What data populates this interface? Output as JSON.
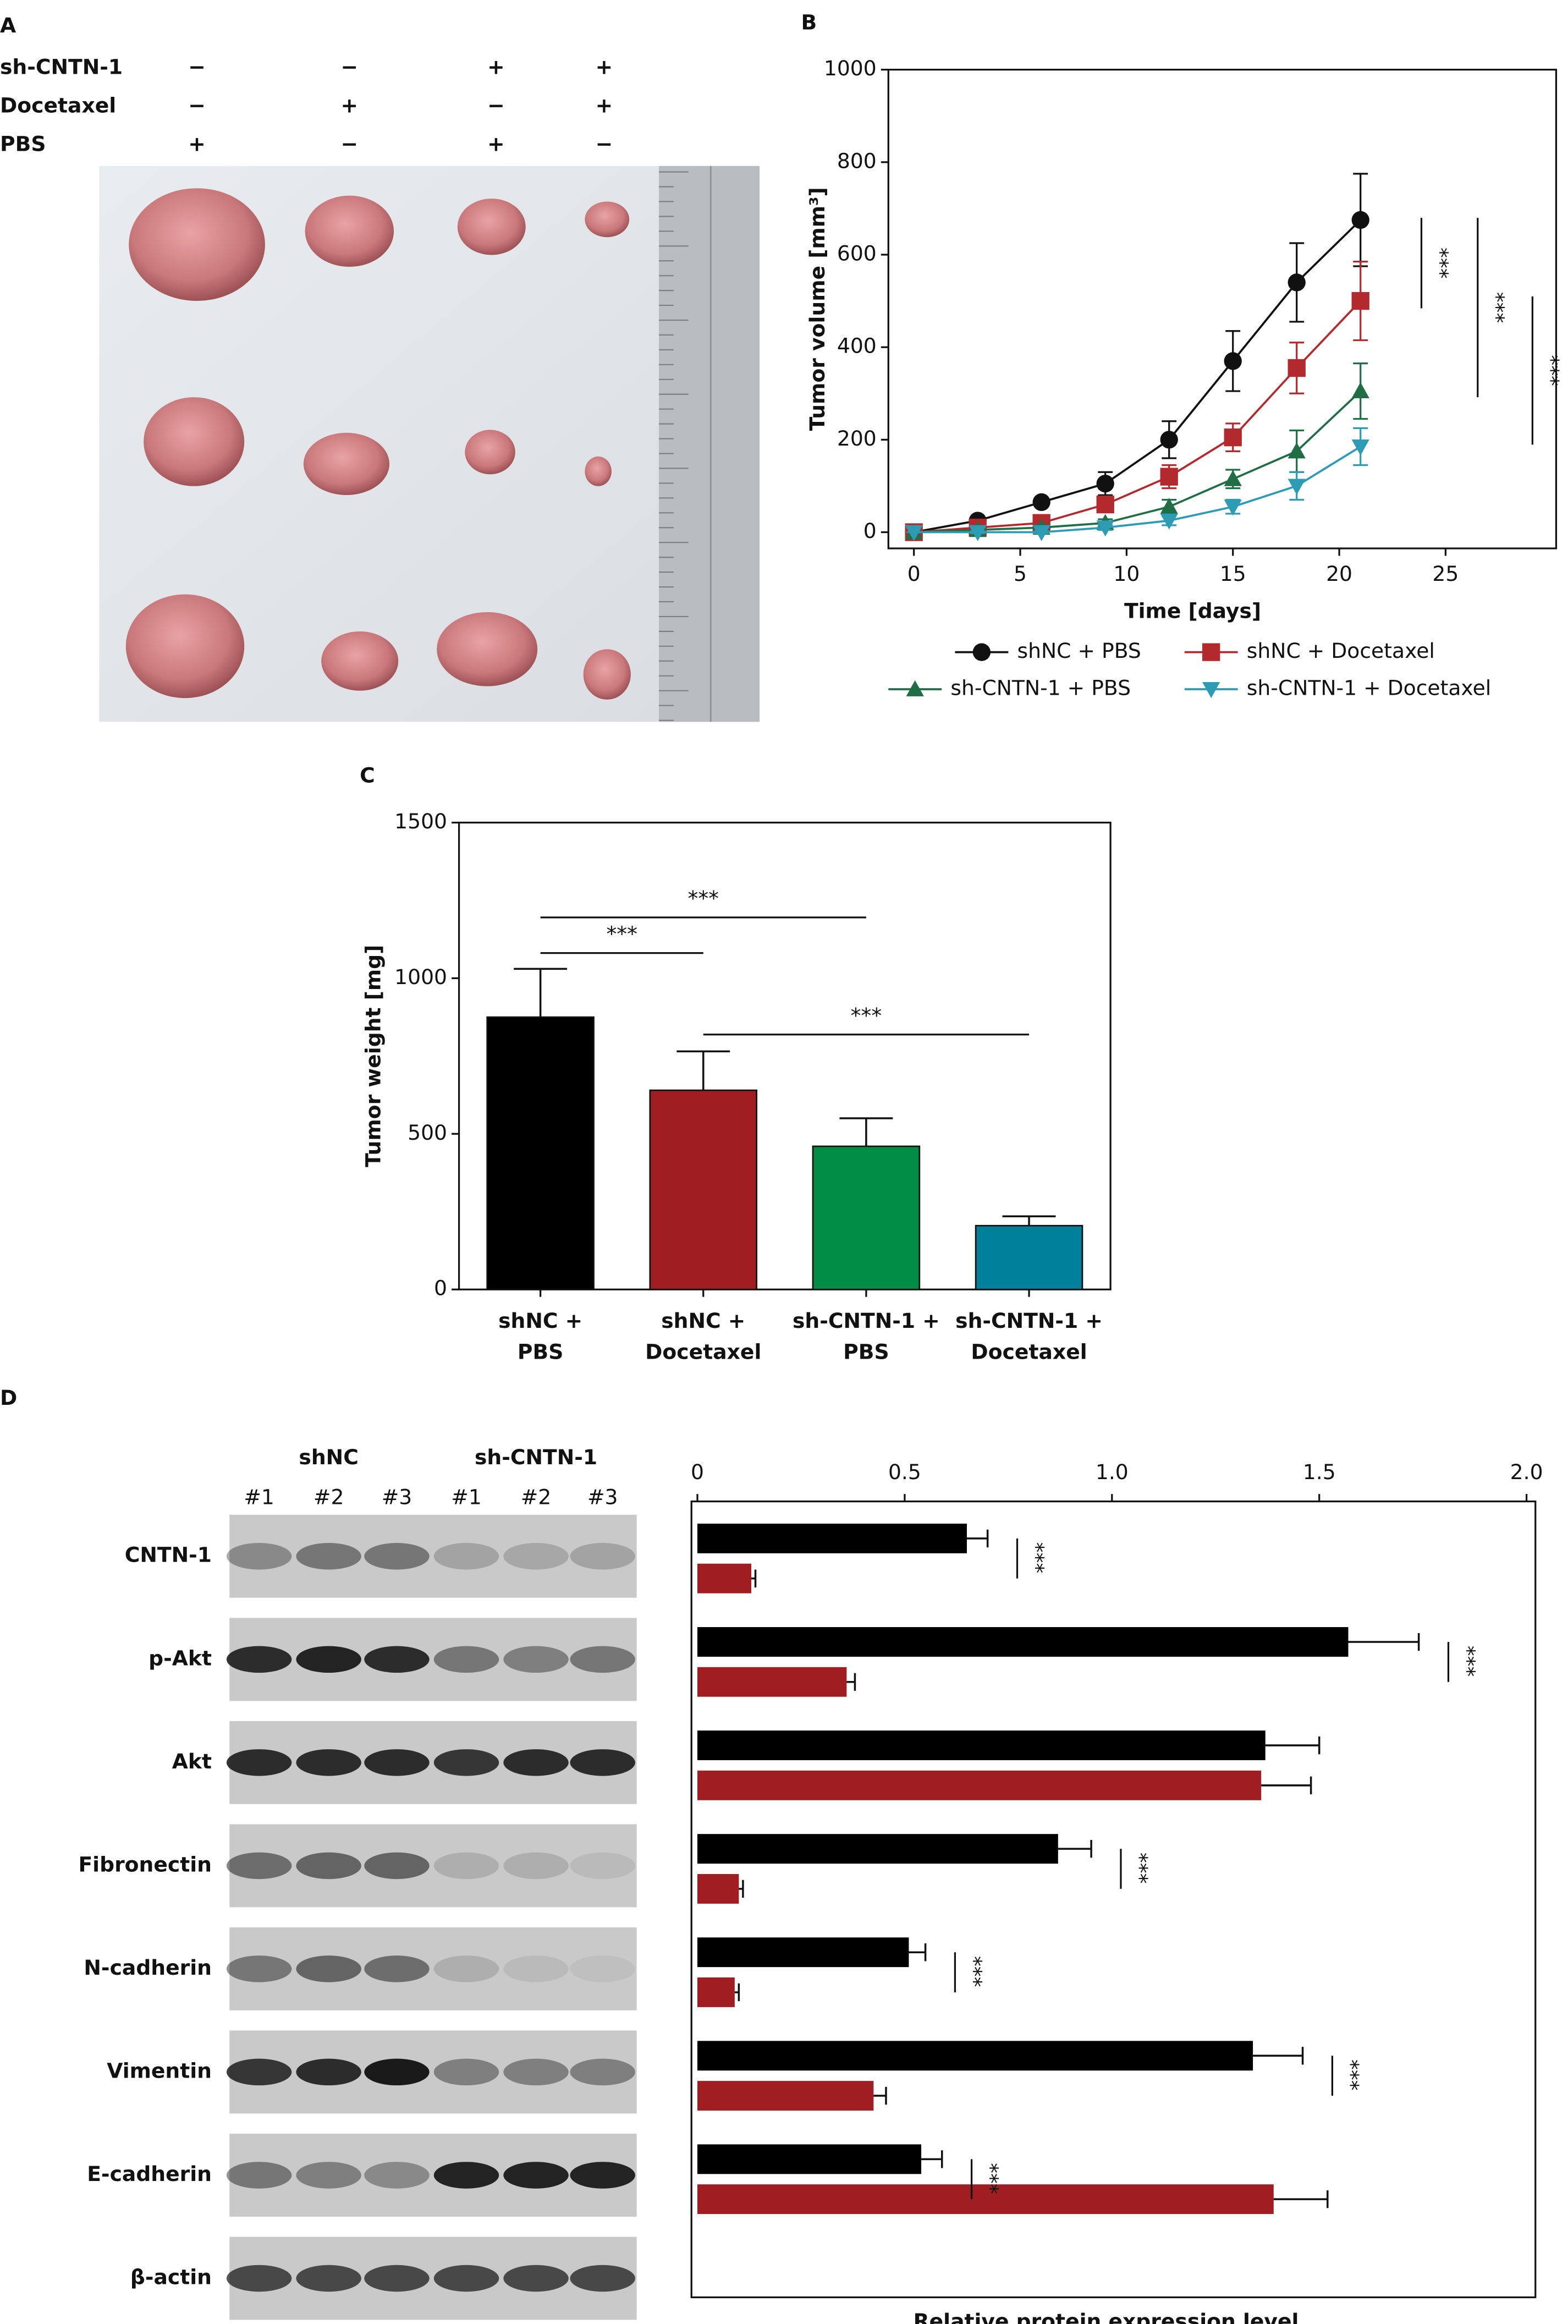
{
  "panels": [
    "A",
    "B",
    "C",
    "D"
  ],
  "panel_a": {
    "rows": [
      {
        "label": "sh-CNTN-1",
        "signs": [
          "−",
          "−",
          "+",
          "+"
        ]
      },
      {
        "label": "Docetaxel",
        "signs": [
          "−",
          "+",
          "−",
          "+"
        ]
      },
      {
        "label": "PBS",
        "signs": [
          "+",
          "−",
          "+",
          "−"
        ]
      }
    ]
  },
  "blot": {
    "groups": [
      "shNC",
      "sh-CNTN-1"
    ],
    "lanes": [
      "#1",
      "#2",
      "#3",
      "#1",
      "#2",
      "#3"
    ],
    "reference_row": "β-actin"
  },
  "chart_data": [
    {
      "type": "line",
      "xlabel": "Time [days]",
      "ylabel": "Tumor volume [mm³]",
      "x": [
        0,
        3,
        6,
        9,
        12,
        15,
        18,
        21
      ],
      "xlim": [
        -1.2,
        30.2
      ],
      "xticks": [
        0,
        5,
        10,
        15,
        20,
        25
      ],
      "ylim": [
        -35,
        1000
      ],
      "yticks": [
        0,
        200,
        400,
        600,
        800,
        1000
      ],
      "legend": "bottom",
      "series": [
        {
          "name": "shNC + PBS",
          "color": "#111111",
          "marker": "circle",
          "values": [
            0,
            25,
            65,
            105,
            200,
            370,
            540,
            675
          ],
          "errors": [
            0,
            5,
            8,
            25,
            40,
            65,
            85,
            100
          ]
        },
        {
          "name": "shNC + Docetaxel",
          "color": "#b22a2e",
          "marker": "square",
          "values": [
            0,
            10,
            20,
            60,
            120,
            205,
            355,
            500
          ],
          "errors": [
            0,
            5,
            5,
            10,
            25,
            30,
            55,
            85
          ]
        },
        {
          "name": "sh-CNTN-1 + PBS",
          "color": "#1f6e45",
          "marker": "triangle-up",
          "values": [
            0,
            5,
            10,
            20,
            55,
            115,
            175,
            305
          ],
          "errors": [
            0,
            3,
            5,
            8,
            15,
            20,
            45,
            60
          ]
        },
        {
          "name": "sh-CNTN-1 + Docetaxel",
          "color": "#2e9bb5",
          "marker": "triangle-down",
          "values": [
            0,
            0,
            0,
            10,
            25,
            55,
            100,
            185
          ],
          "errors": [
            0,
            2,
            2,
            5,
            10,
            15,
            30,
            40
          ]
        }
      ],
      "annotations": [
        "***",
        "***",
        "***"
      ]
    },
    {
      "type": "bar",
      "ylabel": "Tumor weight [mg]",
      "categories": [
        [
          "shNC +",
          "PBS"
        ],
        [
          "shNC +",
          "Docetaxel"
        ],
        [
          "sh-CNTN-1 +",
          "PBS"
        ],
        [
          "sh-CNTN-1 +",
          "Docetaxel"
        ]
      ],
      "values": [
        875,
        640,
        460,
        205
      ],
      "errors": [
        155,
        125,
        90,
        30
      ],
      "colors": [
        "#000000",
        "#a01d22",
        "#008c45",
        "#00809a"
      ],
      "ylim": [
        0,
        1500
      ],
      "yticks": [
        0,
        500,
        1000,
        1500
      ],
      "annotations": [
        "***",
        "***",
        "***"
      ]
    },
    {
      "type": "hbar",
      "xlabel": "Relative protein expression level",
      "categories": [
        "CNTN-1",
        "p-Akt",
        "Akt",
        "Fibronectin",
        "N-cadherin",
        "Vimentin",
        "E-cadherin"
      ],
      "xlim": [
        0,
        2.0
      ],
      "xticks": [
        0,
        0.5,
        {
          "value": 1,
          "label": "1.0"
        },
        1.5,
        {
          "value": 2,
          "label": "2.0"
        }
      ],
      "series": [
        {
          "color": "#000000",
          "values": [
            0.65,
            1.57,
            1.37,
            0.87,
            0.51,
            1.34,
            0.54
          ],
          "errors": [
            0.05,
            0.17,
            0.13,
            0.08,
            0.04,
            0.12,
            0.05
          ]
        },
        {
          "color": "#a01d22",
          "values": [
            0.13,
            0.36,
            1.36,
            0.1,
            0.09,
            0.425,
            1.39
          ],
          "errors": [
            0.01,
            0.02,
            0.12,
            0.01,
            0.01,
            0.03,
            0.13
          ]
        }
      ],
      "annotations": [
        "***",
        "***",
        null,
        "***",
        "***",
        "***",
        "***"
      ]
    }
  ]
}
